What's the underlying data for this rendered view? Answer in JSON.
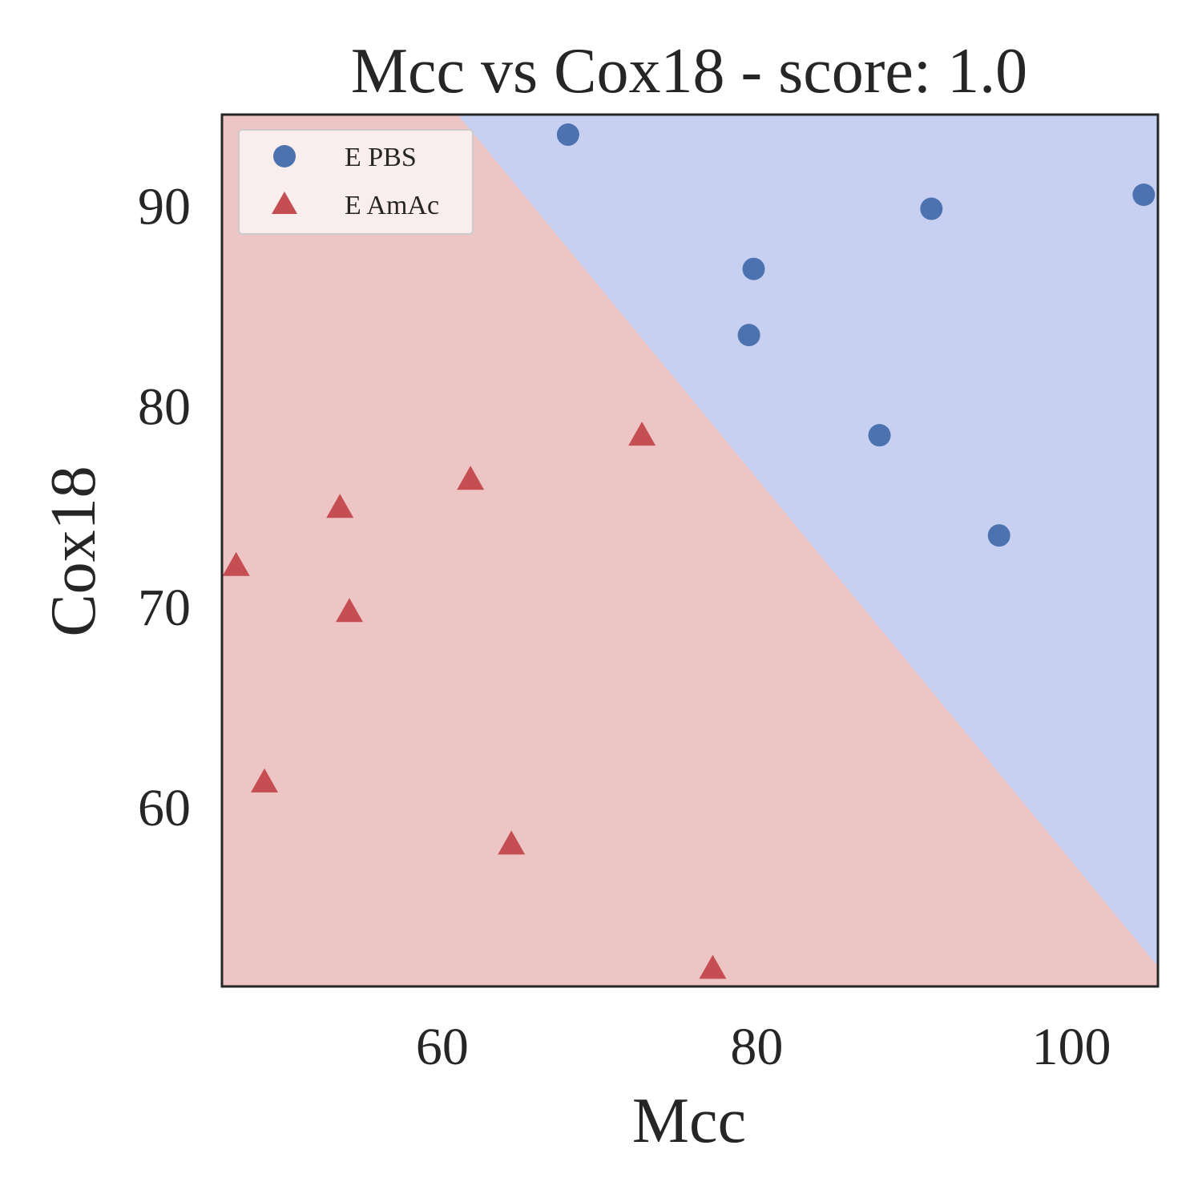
{
  "chart_data": {
    "type": "scatter",
    "title": "Mcc vs Cox18 - score: 1.0",
    "xlabel": "Mcc",
    "ylabel": "Cox18",
    "xlim": [
      46.0,
      105.5
    ],
    "ylim": [
      51.0,
      94.5
    ],
    "xticks": [
      60,
      80,
      100
    ],
    "yticks": [
      60,
      70,
      80,
      90
    ],
    "grid": false,
    "legend_position": "top-left",
    "series": [
      {
        "name": "E PBS",
        "marker": "circle",
        "color": "#4c72b0",
        "points": [
          {
            "x": 68.0,
            "y": 93.5
          },
          {
            "x": 104.6,
            "y": 90.5
          },
          {
            "x": 91.1,
            "y": 89.8
          },
          {
            "x": 79.8,
            "y": 86.8
          },
          {
            "x": 79.5,
            "y": 83.5
          },
          {
            "x": 87.8,
            "y": 78.5
          },
          {
            "x": 95.4,
            "y": 73.5
          }
        ]
      },
      {
        "name": "E AmAc",
        "marker": "triangle",
        "color": "#c44e52",
        "points": [
          {
            "x": 72.7,
            "y": 78.5
          },
          {
            "x": 61.8,
            "y": 76.3
          },
          {
            "x": 53.5,
            "y": 74.9
          },
          {
            "x": 46.9,
            "y": 72.0
          },
          {
            "x": 54.1,
            "y": 69.7
          },
          {
            "x": 48.7,
            "y": 61.2
          },
          {
            "x": 64.4,
            "y": 58.1
          },
          {
            "x": 77.2,
            "y": 51.9
          }
        ]
      }
    ],
    "decision_regions": {
      "boundary_line": [
        {
          "x": 61.0,
          "y": 94.5
        },
        {
          "x": 105.5,
          "y": 52.0
        }
      ],
      "upper_right_color": "#c8d0f2",
      "lower_left_color": "#eec5c5"
    }
  }
}
